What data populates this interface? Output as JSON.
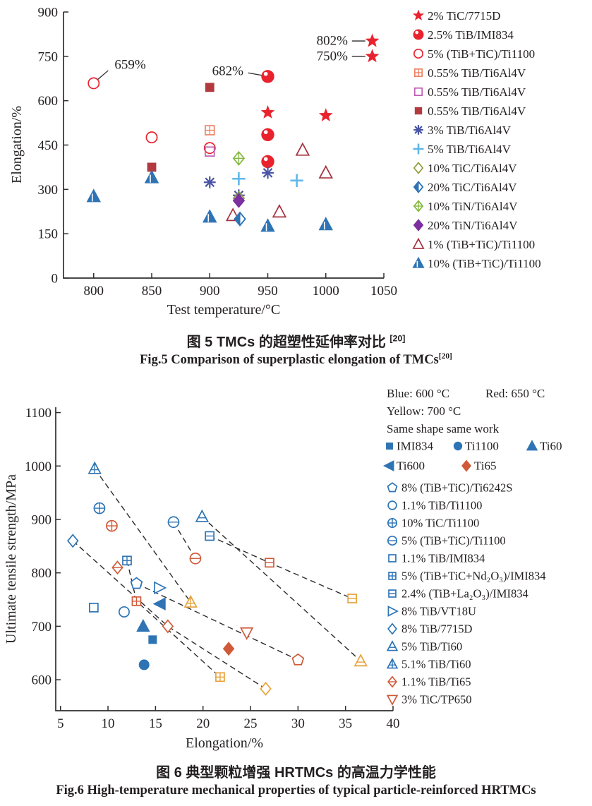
{
  "captions": {
    "fig5_zh": "图 5  TMCs 的超塑性延伸率对比 ",
    "fig5_zh_sup": "[20]",
    "fig5_en": "Fig.5  Comparison of superplastic elongation of TMCs",
    "fig5_en_sup": "[20]",
    "fig6_zh": "图 6  典型颗粒增强 HRTMCs 的高温力学性能",
    "fig6_en": "Fig.6  High-temperature mechanical properties of typical particle-reinforced HRTMCs"
  },
  "colors": {
    "axis": "#2f2f2f",
    "text": "#231f20",
    "dash": "#2b2b2b"
  },
  "chart_data": [
    {
      "id": "fig5",
      "type": "scatter",
      "title": "",
      "xlabel": "Test temperature/°C",
      "ylabel": "Elongation/%",
      "xlim": [
        774,
        1050
      ],
      "ylim": [
        0,
        900
      ],
      "xticks": [
        800,
        850,
        900,
        950,
        1000,
        1050
      ],
      "yticks": [
        0,
        150,
        300,
        450,
        600,
        750,
        900
      ],
      "grid": false,
      "legend_position": "right",
      "series": [
        {
          "name": "2% TiC/7715D",
          "marker": "star",
          "color": "#e8232e",
          "points": [
            [
              950,
              560
            ],
            [
              1000,
              550
            ],
            [
              1040,
              802
            ],
            [
              1040,
              750
            ]
          ]
        },
        {
          "name": "2.5% TiB/IMI834",
          "marker": "ball",
          "color": "#e8232e",
          "points": [
            [
              950,
              682
            ],
            [
              950,
              485
            ],
            [
              950,
              394
            ]
          ]
        },
        {
          "name": "5% (TiB+TiC)/Ti1100",
          "marker": "circle-open",
          "color": "#e8232e",
          "points": [
            [
              800,
              659
            ],
            [
              850,
              476
            ],
            [
              900,
              440
            ]
          ]
        },
        {
          "name": "0.55% TiB/Ti6Al4V",
          "marker": "square-cross",
          "color": "#ec8266",
          "points": [
            [
              900,
              500
            ]
          ]
        },
        {
          "name": "0.55% TiB/Ti6Al4V",
          "marker": "square-open",
          "color": "#bd5fb3",
          "points": [
            [
              900,
              428
            ]
          ]
        },
        {
          "name": "0.55% TiB/Ti6Al4V",
          "marker": "square-filled",
          "color": "#b23a3e",
          "points": [
            [
              850,
              375
            ],
            [
              900,
              645
            ]
          ]
        },
        {
          "name": "3% TiB/Ti6Al4V",
          "marker": "asterisk",
          "color": "#4a55a8",
          "points": [
            [
              900,
              324
            ],
            [
              925,
              280
            ],
            [
              950,
              356
            ]
          ]
        },
        {
          "name": "5% TiB/Ti6Al4V",
          "marker": "plus",
          "color": "#5fb8ea",
          "points": [
            [
              925,
              336
            ],
            [
              975,
              330
            ]
          ]
        },
        {
          "name": "10% TiC/Ti6Al4V",
          "marker": "diamond-open",
          "color": "#8f9c38",
          "points": [
            [
              925,
              270
            ]
          ]
        },
        {
          "name": "20% TiC/Ti6Al4V",
          "marker": "diamond-half",
          "color": "#2e74b5",
          "points": [
            [
              926,
              200
            ]
          ]
        },
        {
          "name": "10% TiN/Ti6Al4V",
          "marker": "diamond-plus",
          "color": "#84b840",
          "points": [
            [
              925,
              405
            ]
          ]
        },
        {
          "name": "20% TiN/Ti6Al4V",
          "marker": "diamond-filled",
          "color": "#7c2fa0",
          "points": [
            [
              925,
              262
            ]
          ]
        },
        {
          "name": "1% (TiB+TiC)/Ti1100",
          "marker": "triangle-open",
          "color": "#a5303d",
          "z": 8.7,
          "points": [
            [
              920,
              212
            ],
            [
              960,
              224
            ],
            [
              980,
              433
            ],
            [
              1000,
              356
            ]
          ]
        },
        {
          "name": "10% (TiB+TiC)/Ti1100",
          "marker": "triangle-half",
          "color": "#2e74b5",
          "points": [
            [
              800,
              276
            ],
            [
              850,
              340
            ],
            [
              900,
              207
            ],
            [
              950,
              176
            ],
            [
              1000,
              181
            ]
          ]
        }
      ],
      "annotations": [
        {
          "text": "659%",
          "anchor": "start",
          "text_pos": [
            818,
            721
          ],
          "line": [
            [
              803.6,
              672
            ],
            [
              812.5,
              702
            ]
          ]
        },
        {
          "text": "682%",
          "anchor": "end",
          "text_pos": [
            929,
            700
          ],
          "line": [
            [
              933,
              694
            ],
            [
              944.5,
              686
            ]
          ]
        },
        {
          "text": "802%",
          "anchor": "end",
          "text_pos": [
            1019,
            802
          ],
          "line": [
            [
              1022.5,
              802
            ],
            [
              1034,
              802
            ]
          ]
        },
        {
          "text": "750%",
          "anchor": "end",
          "text_pos": [
            1019,
            750
          ],
          "line": [
            [
              1022.5,
              750
            ],
            [
              1034,
              750
            ]
          ]
        }
      ]
    },
    {
      "id": "fig6",
      "type": "scatter",
      "title": "",
      "xlabel": "Elongation/%",
      "ylabel": "Ultimate tensile strength/MPa",
      "xlim": [
        4.5,
        40
      ],
      "ylim": [
        542,
        1110
      ],
      "xticks": [
        5,
        10,
        15,
        20,
        25,
        30,
        35,
        40
      ],
      "yticks": [
        600,
        700,
        800,
        900,
        1000,
        1100
      ],
      "grid": false,
      "temp_colors": {
        "blue": "#2e74b5",
        "red": "#d05a38",
        "yellow": "#e8a23c"
      },
      "legend_header": [
        "Blue: 600 °C",
        "Red: 650 °C",
        "Yellow: 700 °C",
        "Same shape same work"
      ],
      "legend_alloy_rows": [
        [
          "IMI834",
          "Ti1100",
          "Ti60"
        ],
        [
          "Ti600",
          "Ti65"
        ]
      ],
      "series": [
        {
          "name": "IMI834",
          "marker": "square-filled",
          "legend": false,
          "points": [
            {
              "x": 14.7,
              "y": 675,
              "temp": "blue"
            }
          ]
        },
        {
          "name": "Ti1100",
          "marker": "circle-filled",
          "legend": false,
          "points": [
            {
              "x": 13.8,
              "y": 628,
              "temp": "blue"
            }
          ]
        },
        {
          "name": "Ti60",
          "marker": "triangle-filled",
          "legend": false,
          "points": [
            {
              "x": 13.7,
              "y": 700,
              "temp": "blue"
            }
          ]
        },
        {
          "name": "Ti600",
          "marker": "lefttriangle-filled",
          "legend": false,
          "points": [
            {
              "x": 15.5,
              "y": 742,
              "temp": "blue"
            }
          ]
        },
        {
          "name": "Ti65",
          "marker": "diamond-filled",
          "legend": false,
          "points": [
            {
              "x": 22.7,
              "y": 658,
              "temp": "red"
            }
          ]
        },
        {
          "name": "8% (TiB+TiC)/Ti6242S",
          "marker": "pentagon-open",
          "legend": true,
          "linked": true,
          "points": [
            {
              "x": 13,
              "y": 780,
              "temp": "blue"
            },
            {
              "x": 30,
              "y": 637,
              "temp": "red"
            }
          ]
        },
        {
          "name": "1.1% TiB/Ti1100",
          "marker": "circle-open",
          "legend": true,
          "points": [
            {
              "x": 11.7,
              "y": 727,
              "temp": "blue"
            }
          ]
        },
        {
          "name": "10% TiC/Ti1100",
          "marker": "circle-plus",
          "legend": true,
          "points": [
            {
              "x": 9.1,
              "y": 921,
              "temp": "blue"
            },
            {
              "x": 10.4,
              "y": 888,
              "temp": "red"
            }
          ]
        },
        {
          "name": "5% (TiB+TiC)/Ti1100",
          "marker": "circle-hline",
          "legend": true,
          "linked": true,
          "points": [
            {
              "x": 16.9,
              "y": 895,
              "temp": "blue"
            },
            {
              "x": 19.2,
              "y": 827,
              "temp": "red"
            }
          ]
        },
        {
          "name": "1.1% TiB/IMI834",
          "marker": "square-open",
          "legend": true,
          "points": [
            {
              "x": 8.5,
              "y": 735,
              "temp": "blue"
            }
          ]
        },
        {
          "name": "5% (TiB+TiC+Nd₂O₃)/IMI834",
          "marker": "square-cross",
          "legend": true,
          "linked": true,
          "points": [
            {
              "x": 12,
              "y": 823,
              "temp": "blue"
            },
            {
              "x": 13,
              "y": 747,
              "temp": "red"
            },
            {
              "x": 21.8,
              "y": 605,
              "temp": "yellow"
            }
          ]
        },
        {
          "name": "2.4% (TiB+La₂O₃)/IMI834",
          "marker": "square-hline",
          "legend": true,
          "linked": true,
          "points": [
            {
              "x": 20.7,
              "y": 869,
              "temp": "blue"
            },
            {
              "x": 27,
              "y": 819,
              "temp": "red"
            },
            {
              "x": 35.7,
              "y": 752,
              "temp": "yellow"
            }
          ]
        },
        {
          "name": "8% TiB/VT18U",
          "marker": "righttriangle-open",
          "legend": true,
          "points": [
            {
              "x": 15.4,
              "y": 772,
              "temp": "blue"
            }
          ]
        },
        {
          "name": "8% TiB/7715D",
          "marker": "diamond-open",
          "legend": true,
          "linked": true,
          "points": [
            {
              "x": 6.3,
              "y": 860,
              "temp": "blue"
            },
            {
              "x": 16.3,
              "y": 700,
              "temp": "red"
            },
            {
              "x": 26.6,
              "y": 583,
              "temp": "yellow"
            }
          ]
        },
        {
          "name": "5% TiB/Ti60",
          "marker": "triangle-hline",
          "legend": true,
          "linked": true,
          "points": [
            {
              "x": 19.9,
              "y": 905,
              "temp": "blue"
            },
            {
              "x": 36.6,
              "y": 635,
              "temp": "yellow"
            }
          ]
        },
        {
          "name": "5.1% TiB/Ti60",
          "marker": "triangle-plus",
          "legend": true,
          "linked": true,
          "points": [
            {
              "x": 8.6,
              "y": 995,
              "temp": "blue"
            },
            {
              "x": 18.7,
              "y": 745,
              "temp": "yellow"
            }
          ]
        },
        {
          "name": "1.1% TiB/Ti65",
          "marker": "diamond-hline",
          "legend": true,
          "points": [
            {
              "x": 11,
              "y": 810,
              "temp": "red"
            }
          ]
        },
        {
          "name": "3% TiC/TP650",
          "marker": "downtriangle-open",
          "legend": true,
          "points": [
            {
              "x": 24.6,
              "y": 688,
              "temp": "red"
            }
          ]
        }
      ]
    }
  ]
}
